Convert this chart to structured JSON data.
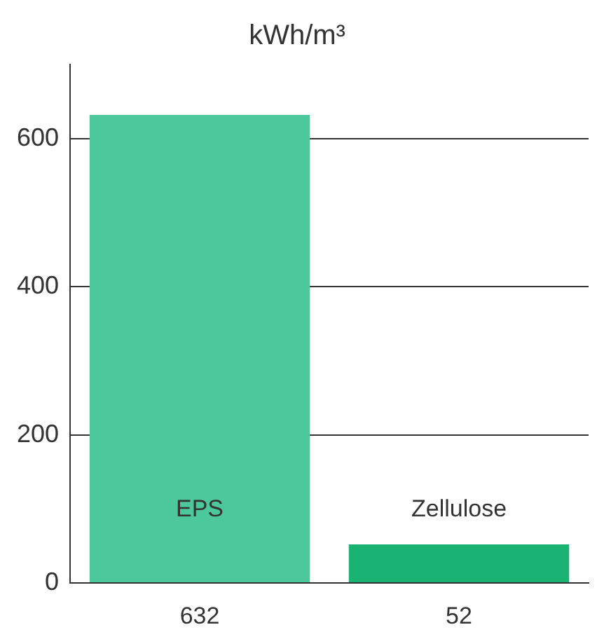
{
  "chart_data": {
    "type": "bar",
    "title": "kWh/m³",
    "categories": [
      "EPS",
      "Zellulose"
    ],
    "values": [
      632,
      52
    ],
    "colors": [
      "#4dc89c",
      "#1ab273"
    ],
    "ylim": [
      0,
      700
    ],
    "yticks": [
      0,
      200,
      400,
      600
    ],
    "grid": "y",
    "legend": false,
    "data_labels": true
  }
}
